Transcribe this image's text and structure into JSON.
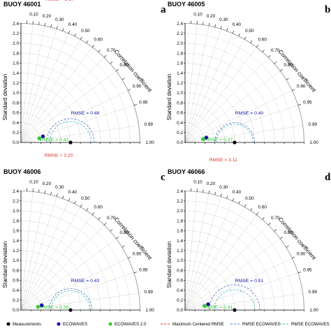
{
  "chart_data": [
    {
      "type": "taylor_diagram",
      "title": "BUOY 46001",
      "panel_letter": "a",
      "ylabel": "Standard deviation",
      "arc_label": "Correlation coefficient",
      "std_ticks": [
        "0.0",
        "0.2",
        "0.4",
        "0.6",
        "0.8",
        "1.0",
        "1.2",
        "1.4",
        "1.6",
        "1.8",
        "2.0",
        "2.2",
        "2.4"
      ],
      "corr_ticks": [
        "0.10",
        "0.20",
        "0.30",
        "0.40",
        "0.50",
        "0.60",
        "0.70",
        "0.80",
        "0.90",
        "0.95",
        "0.99",
        "1.00"
      ],
      "reference_std": 1.0,
      "points": [
        {
          "series": "ECOWAVES",
          "std": 0.46,
          "corr": 0.964
        },
        {
          "series": "ECOWAVES 2.0",
          "std": 0.38,
          "corr": 0.976
        }
      ],
      "max_centered_rmse": {
        "label": "RMSE = 2.97",
        "value": 2.97
      },
      "rmse_labels": [
        {
          "series": "ECOWAVES",
          "text": "RMSE = 0.48",
          "value": 0.48
        },
        {
          "series": "ECOWAVES 2.0",
          "text": "RMSE = 0.42",
          "value": 0.42
        }
      ],
      "ylim": [
        0,
        2.4
      ]
    },
    {
      "type": "taylor_diagram",
      "title": "BUOY 46005",
      "panel_letter": "b",
      "ylabel": "Standard deviation",
      "arc_label": "Correlation coefficient",
      "std_ticks": [
        "0.0",
        "0.2",
        "0.4",
        "0.6",
        "0.8",
        "1.0",
        "1.2",
        "1.4",
        "1.6",
        "1.8",
        "2.0",
        "2.2",
        "2.4"
      ],
      "corr_ticks": [
        "0.10",
        "0.20",
        "0.30",
        "0.40",
        "0.50",
        "0.60",
        "0.70",
        "0.80",
        "0.90",
        "0.95",
        "0.99",
        "1.00"
      ],
      "reference_std": 1.0,
      "points": [
        {
          "series": "ECOWAVES",
          "std": 0.44,
          "corr": 0.975
        },
        {
          "series": "ECOWAVES 2.0",
          "std": 0.37,
          "corr": 0.983
        }
      ],
      "max_centered_rmse": {
        "label": "RMSE = 3.02",
        "value": 3.02
      },
      "rmse_labels": [
        {
          "series": "ECOWAVES",
          "text": "RMSE = 0.40",
          "value": 0.4
        },
        {
          "series": "ECOWAVES 2.0",
          "text": "RMSE = 0.37",
          "value": 0.37
        }
      ],
      "ylim": [
        0,
        2.4
      ]
    },
    {
      "type": "taylor_diagram",
      "title": "BUOY 46006",
      "panel_letter": "c",
      "ylabel": "Standard deviation",
      "arc_label": "Correlation coefficient",
      "std_ticks": [
        "0.0",
        "0.2",
        "0.4",
        "0.6",
        "0.8",
        "1.0",
        "1.2",
        "1.4",
        "1.6",
        "1.8",
        "2.0",
        "2.2",
        "2.4"
      ],
      "corr_ticks": [
        "0.10",
        "0.20",
        "0.30",
        "0.40",
        "0.50",
        "0.60",
        "0.70",
        "0.80",
        "0.90",
        "0.95",
        "0.99",
        "1.00"
      ],
      "reference_std": 1.0,
      "points": [
        {
          "series": "ECOWAVES",
          "std": 0.43,
          "corr": 0.975
        },
        {
          "series": "ECOWAVES 2.0",
          "std": 0.35,
          "corr": 0.983
        }
      ],
      "max_centered_rmse": {
        "label": "RMSE = 3.20",
        "value": 3.2
      },
      "rmse_labels": [
        {
          "series": "ECOWAVES",
          "text": "RMSE = 0.43",
          "value": 0.43
        },
        {
          "series": "ECOWAVES 2.0",
          "text": "RMSE = 0.39",
          "value": 0.39
        }
      ],
      "ylim": [
        0,
        2.4
      ]
    },
    {
      "type": "taylor_diagram",
      "title": "BUOY 46066",
      "panel_letter": "d",
      "ylabel": "Standard deviation",
      "arc_label": "Correlation coefficient",
      "std_ticks": [
        "0.0",
        "0.2",
        "0.4",
        "0.6",
        "0.8",
        "1.0",
        "1.2",
        "1.4",
        "1.6",
        "1.8",
        "2.0",
        "2.2",
        "2.4"
      ],
      "corr_ticks": [
        "0.10",
        "0.20",
        "0.30",
        "0.40",
        "0.50",
        "0.60",
        "0.70",
        "0.80",
        "0.90",
        "0.95",
        "0.99",
        "1.00"
      ],
      "reference_std": 1.0,
      "points": [
        {
          "series": "ECOWAVES",
          "std": 0.48,
          "corr": 0.97
        },
        {
          "series": "ECOWAVES 2.0",
          "std": 0.4,
          "corr": 0.978
        }
      ],
      "max_centered_rmse": {
        "label": "RMSE = 3.11",
        "value": 3.11
      },
      "rmse_labels": [
        {
          "series": "ECOWAVES",
          "text": "RMSE = 0.51",
          "value": 0.51
        },
        {
          "series": "ECOWAVES 2.0",
          "text": "RMSE = 0.41",
          "value": 0.41
        }
      ],
      "ylim": [
        0,
        2.4
      ]
    }
  ],
  "legend": [
    {
      "label": "Measurements",
      "kind": "marker",
      "color": "#000000"
    },
    {
      "label": "ECOWAVES",
      "kind": "marker",
      "color": "#1a1aa6"
    },
    {
      "label": "ECOWAVES 2.0",
      "kind": "marker",
      "color": "#33cc33"
    },
    {
      "label": "Maximum Centered RMSE",
      "kind": "dashed-line",
      "color": "#e03030"
    },
    {
      "label": "RMSE ECOWAVES",
      "kind": "dashed-line",
      "color": "#5577cc"
    },
    {
      "label": "RMSE ECOWAVES 2.0",
      "kind": "dashed-line",
      "color": "#44bbbb"
    }
  ],
  "colors": {
    "measurement": "#000000",
    "ecowaves": "#1a1aa6",
    "ecowaves2": "#33cc33",
    "max_rmse": "#e03030",
    "rmse_ecowaves": "#5577cc",
    "rmse_ecowaves2": "#44bbbb",
    "grid": "#9a9a9a",
    "axis": "#000000"
  }
}
